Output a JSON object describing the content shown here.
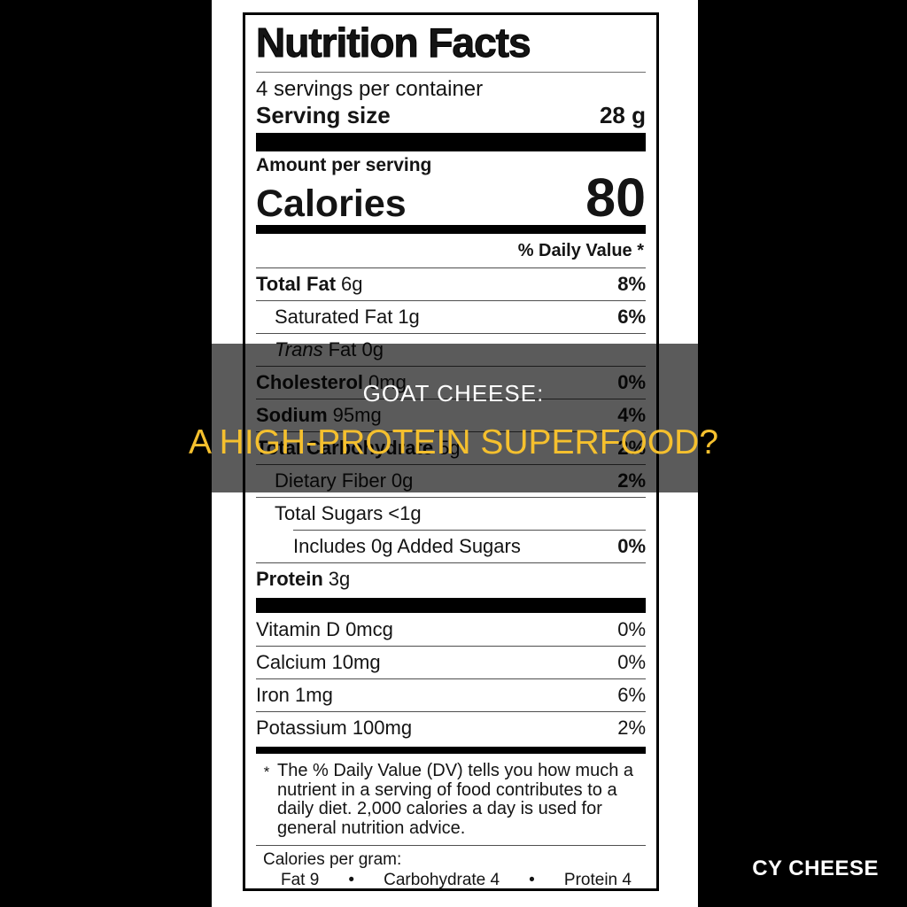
{
  "banner": {
    "line1": "GOAT CHEESE:",
    "line2": "A HIGH-PROTEIN SUPERFOOD?",
    "line1_color": "#ffffff",
    "line2_color": "#f5c02e",
    "background": "rgba(0,0,0,0.645)"
  },
  "watermark": "CY CHEESE",
  "label": {
    "title": "Nutrition Facts",
    "servings_per_container": "4 servings per container",
    "serving_size": {
      "label": "Serving size",
      "value": "28 g"
    },
    "amount_per_serving": "Amount per serving",
    "calories": {
      "label": "Calories",
      "value": "80"
    },
    "daily_value_header": "% Daily Value *",
    "rows": [
      {
        "name": "Total Fat",
        "amount": "6g",
        "dv": "8%"
      },
      {
        "name": "Saturated Fat",
        "amount": "1g",
        "dv": "6%"
      },
      {
        "name": "Trans",
        "amount": "Fat 0g",
        "dv": ""
      },
      {
        "name": "Cholesterol",
        "amount": "0mg",
        "dv": "0%"
      },
      {
        "name": "Sodium",
        "amount": "95mg",
        "dv": "4%"
      },
      {
        "name": "Total Carbohydrate",
        "amount": "5g",
        "dv": "2%"
      },
      {
        "name": "Dietary Fiber",
        "amount": "0g",
        "dv": "2%"
      },
      {
        "name": "Total Sugars",
        "amount": "<1g",
        "dv": ""
      },
      {
        "name": "Includes 0g Added Sugars",
        "amount": "",
        "dv": "0%"
      },
      {
        "name": "Protein",
        "amount": "3g",
        "dv": ""
      }
    ],
    "vitamins": [
      {
        "name": "Vitamin D 0mcg",
        "dv": "0%"
      },
      {
        "name": "Calcium 10mg",
        "dv": "0%"
      },
      {
        "name": "Iron 1mg",
        "dv": "6%"
      },
      {
        "name": "Potassium 100mg",
        "dv": "2%"
      }
    ],
    "footnote_marker": "*",
    "footnote": "The % Daily Value (DV) tells you how much a nutrient in a serving of food contributes to a daily diet. 2,000 calories a day is used for general nutrition advice.",
    "calories_per_gram": {
      "title": "Calories per gram:",
      "bullet": "•",
      "items": [
        "Fat 9",
        "Carbohydrate 4",
        "Protein 4"
      ]
    }
  }
}
